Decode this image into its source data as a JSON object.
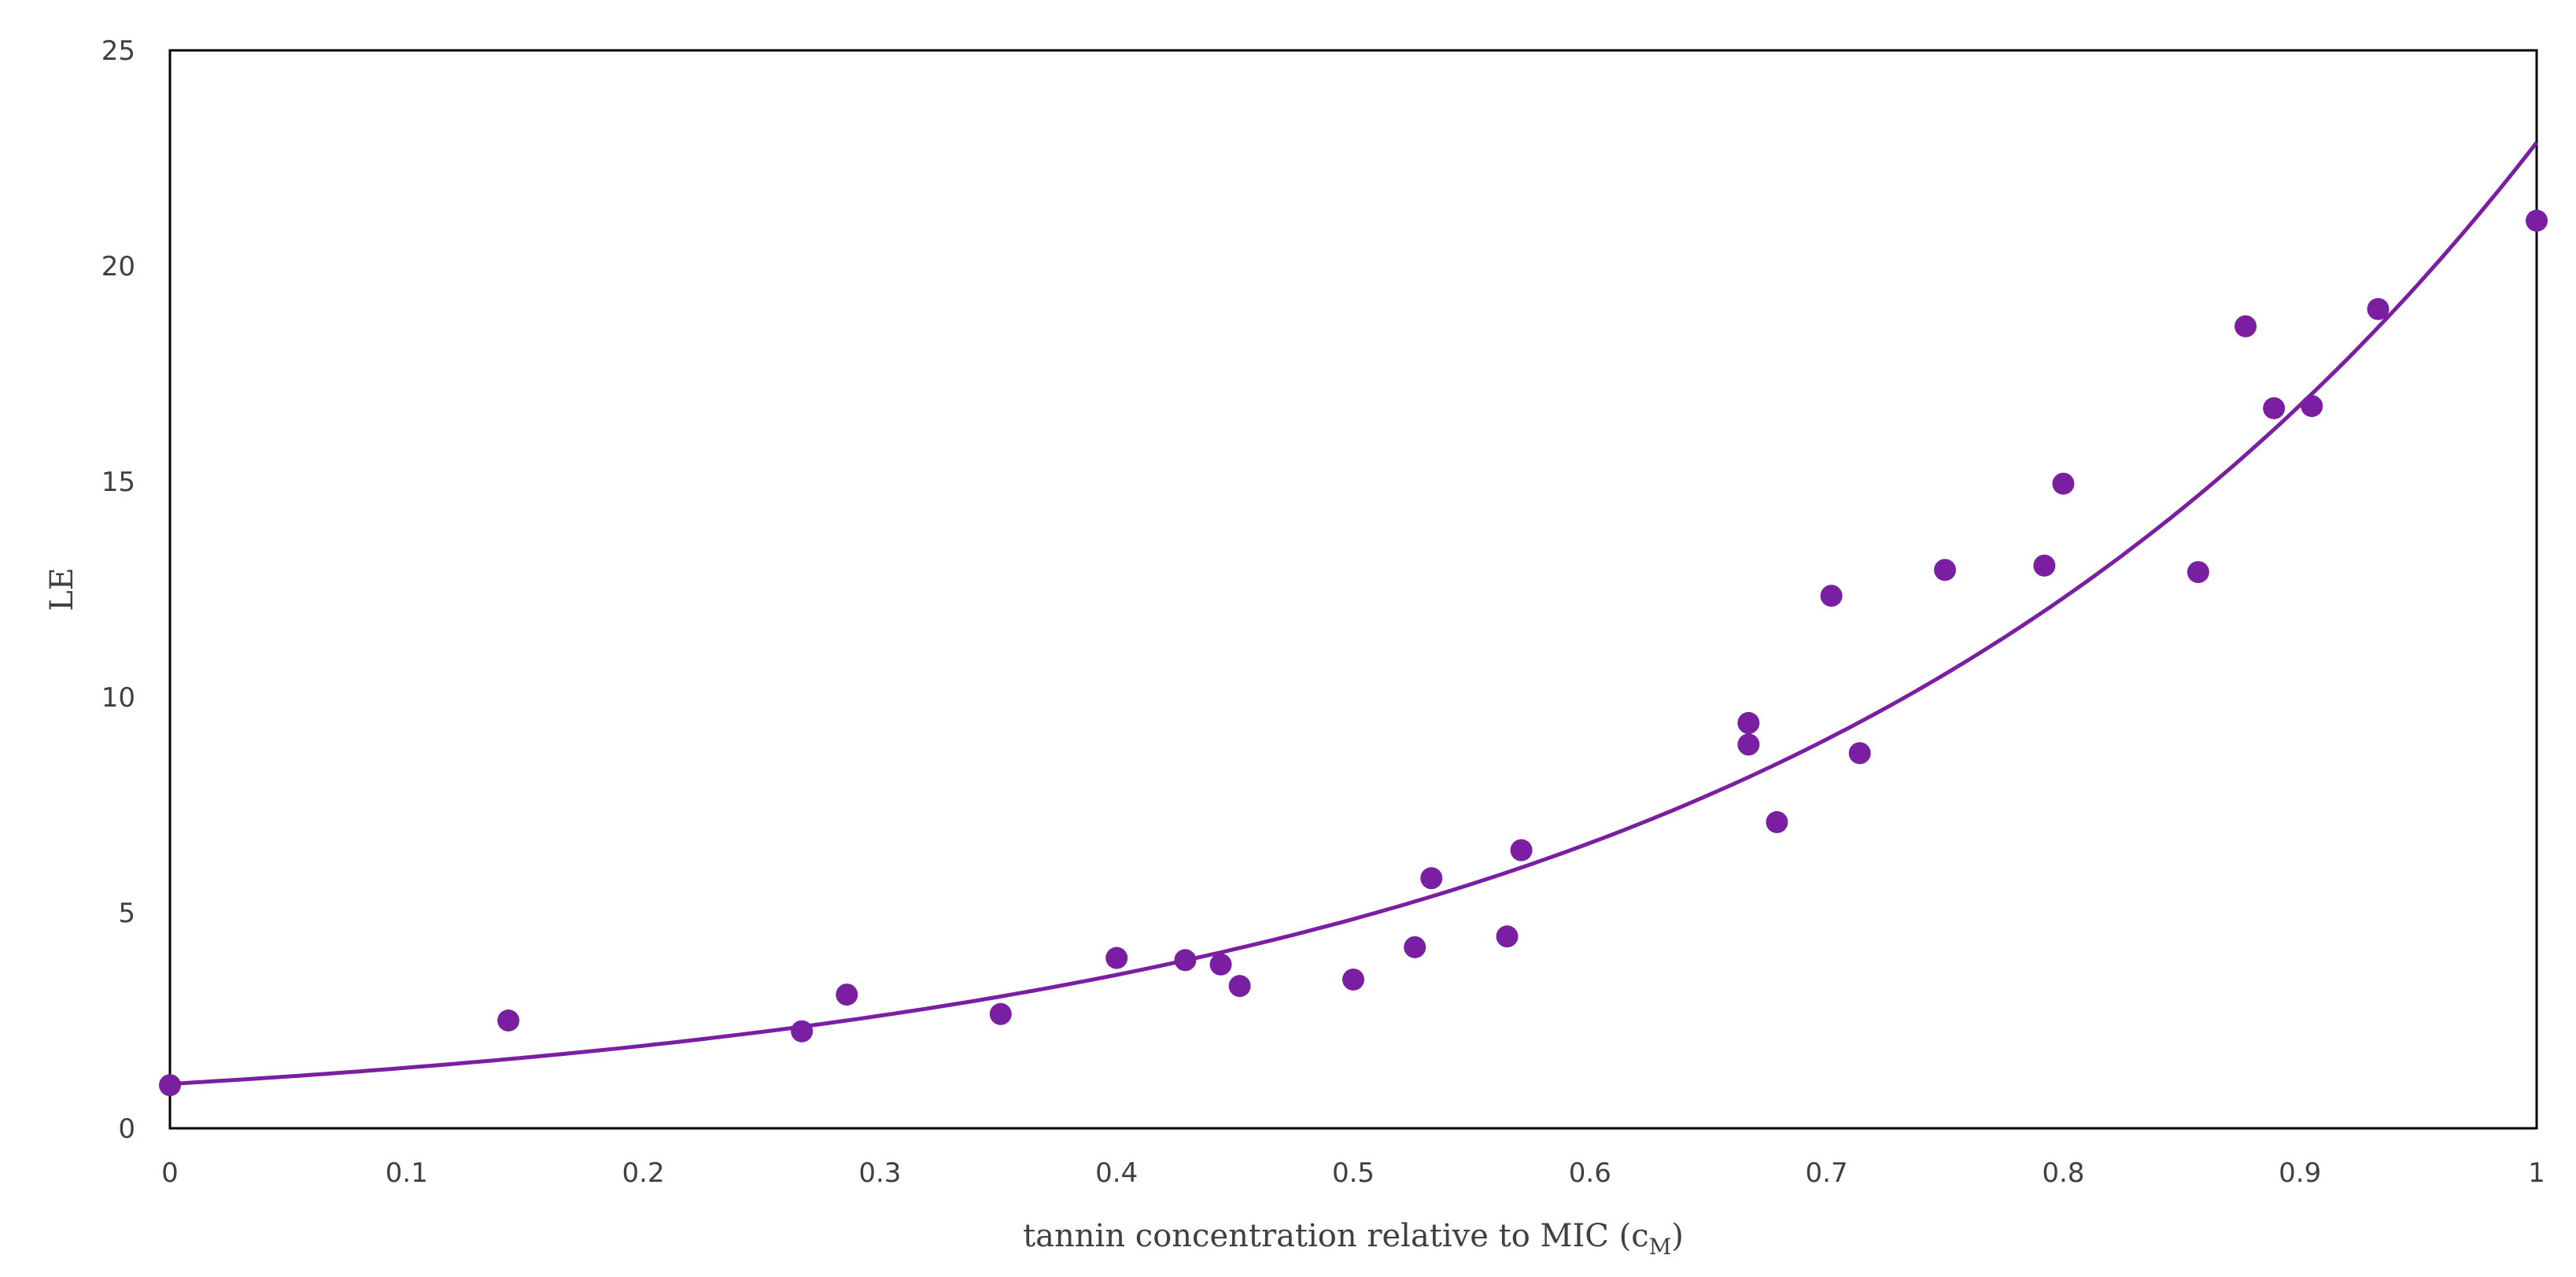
{
  "chart_data": {
    "type": "scatter",
    "title": "",
    "xlabel": "tannin concentration relative to MIC (c",
    "xlabel_subscript": "M",
    "xlabel_close": ")",
    "ylabel": "LE",
    "xlim": [
      0,
      1
    ],
    "ylim": [
      0,
      25
    ],
    "x_ticks": [
      0,
      0.1,
      0.2,
      0.3,
      0.4,
      0.5,
      0.6,
      0.7,
      0.8,
      0.9,
      1
    ],
    "x_tick_labels": [
      "0",
      "0.1",
      "0.2",
      "0.3",
      "0.4",
      "0.5",
      "0.6",
      "0.7",
      "0.8",
      "0.9",
      "1"
    ],
    "y_ticks": [
      0,
      5,
      10,
      15,
      20,
      25
    ],
    "y_tick_labels": [
      "0",
      "5",
      "10",
      "15",
      "20",
      "25"
    ],
    "grid": false,
    "color": "#7B1FA2",
    "points": [
      {
        "x": 0,
        "y": 1.0
      },
      {
        "x": 0.143,
        "y": 2.5
      },
      {
        "x": 0.267,
        "y": 2.25
      },
      {
        "x": 0.286,
        "y": 3.1
      },
      {
        "x": 0.351,
        "y": 2.65
      },
      {
        "x": 0.4,
        "y": 3.95
      },
      {
        "x": 0.429,
        "y": 3.9
      },
      {
        "x": 0.444,
        "y": 3.8
      },
      {
        "x": 0.452,
        "y": 3.3
      },
      {
        "x": 0.5,
        "y": 3.45
      },
      {
        "x": 0.526,
        "y": 4.2
      },
      {
        "x": 0.533,
        "y": 5.8
      },
      {
        "x": 0.565,
        "y": 4.45
      },
      {
        "x": 0.571,
        "y": 6.45
      },
      {
        "x": 0.667,
        "y": 9.4
      },
      {
        "x": 0.667,
        "y": 8.9
      },
      {
        "x": 0.679,
        "y": 7.1
      },
      {
        "x": 0.702,
        "y": 12.35
      },
      {
        "x": 0.714,
        "y": 8.7
      },
      {
        "x": 0.75,
        "y": 12.95
      },
      {
        "x": 0.792,
        "y": 13.05
      },
      {
        "x": 0.8,
        "y": 14.95
      },
      {
        "x": 0.857,
        "y": 12.9
      },
      {
        "x": 0.877,
        "y": 18.6
      },
      {
        "x": 0.889,
        "y": 16.7
      },
      {
        "x": 0.905,
        "y": 16.75
      },
      {
        "x": 0.933,
        "y": 19.0
      },
      {
        "x": 1.0,
        "y": 21.05
      }
    ],
    "trendline": {
      "type": "exponential",
      "a": 1.03,
      "b": 3.1
    }
  }
}
